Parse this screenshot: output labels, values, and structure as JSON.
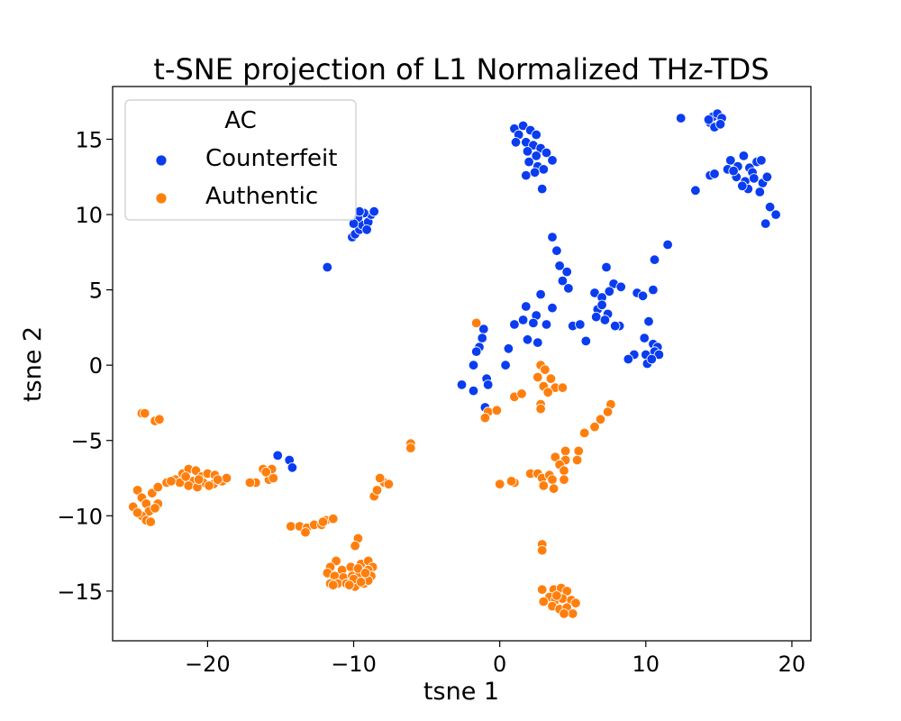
{
  "chart_data": {
    "type": "scatter",
    "title": "t-SNE projection of L1 Normalized THz-TDS",
    "xlabel": "tsne 1",
    "ylabel": "tsne 2",
    "xlim": [
      -26.5,
      21.3
    ],
    "ylim": [
      -18.3,
      18.5
    ],
    "xticks": [
      -20,
      -10,
      0,
      10,
      20
    ],
    "xtick_labels": [
      "−20",
      "−10",
      "0",
      "10",
      "20"
    ],
    "yticks": [
      -15,
      -10,
      -5,
      0,
      5,
      10,
      15
    ],
    "ytick_labels": [
      "−15",
      "−10",
      "−5",
      "0",
      "5",
      "10",
      "15"
    ],
    "grid": false,
    "legend": {
      "title": "AC",
      "placement": "top-left"
    },
    "series": [
      {
        "name": "Counterfeit",
        "color": "#0a3cf0",
        "points": [
          [
            -11.8,
            6.5
          ],
          [
            -10.1,
            8.5
          ],
          [
            -9.9,
            8.7
          ],
          [
            -9.6,
            9.0
          ],
          [
            -9.4,
            9.3
          ],
          [
            -9.0,
            9.5
          ],
          [
            -8.8,
            10.0
          ],
          [
            -9.3,
            10.1
          ],
          [
            -9.7,
            9.8
          ],
          [
            -10.0,
            9.4
          ],
          [
            -9.6,
            10.2
          ],
          [
            -9.1,
            9.0
          ],
          [
            -8.6,
            10.2
          ],
          [
            1.0,
            15.7
          ],
          [
            1.6,
            15.9
          ],
          [
            2.1,
            15.6
          ],
          [
            2.5,
            15.3
          ],
          [
            1.3,
            15.3
          ],
          [
            1.8,
            14.8
          ],
          [
            2.3,
            14.6
          ],
          [
            2.8,
            14.4
          ],
          [
            3.2,
            14.1
          ],
          [
            1.9,
            14.2
          ],
          [
            2.5,
            13.9
          ],
          [
            2.0,
            13.5
          ],
          [
            2.6,
            13.2
          ],
          [
            3.0,
            13.0
          ],
          [
            3.6,
            13.6
          ],
          [
            2.4,
            12.8
          ],
          [
            1.8,
            12.6
          ],
          [
            2.9,
            11.7
          ],
          [
            1.1,
            14.8
          ],
          [
            12.4,
            16.4
          ],
          [
            14.4,
            16.1
          ],
          [
            14.6,
            16.5
          ],
          [
            14.9,
            16.7
          ],
          [
            15.2,
            16.4
          ],
          [
            14.7,
            15.8
          ],
          [
            15.1,
            16.0
          ],
          [
            14.3,
            16.3
          ],
          [
            15.8,
            13.6
          ],
          [
            16.3,
            13.2
          ],
          [
            16.7,
            13.9
          ],
          [
            17.1,
            13.1
          ],
          [
            17.6,
            13.5
          ],
          [
            17.3,
            12.8
          ],
          [
            16.2,
            12.5
          ],
          [
            16.8,
            12.2
          ],
          [
            17.4,
            12.4
          ],
          [
            18.0,
            12.1
          ],
          [
            18.3,
            12.5
          ],
          [
            17.0,
            11.7
          ],
          [
            16.6,
            11.9
          ],
          [
            17.8,
            11.5
          ],
          [
            18.5,
            10.5
          ],
          [
            18.9,
            10.0
          ],
          [
            18.2,
            9.4
          ],
          [
            15.6,
            13.0
          ],
          [
            16.0,
            12.9
          ],
          [
            14.4,
            12.6
          ],
          [
            14.7,
            12.7
          ],
          [
            13.4,
            11.6
          ],
          [
            17.9,
            13.6
          ],
          [
            3.6,
            8.5
          ],
          [
            3.9,
            7.6
          ],
          [
            11.5,
            8.0
          ],
          [
            10.6,
            7.0
          ],
          [
            4.1,
            6.6
          ],
          [
            4.6,
            6.2
          ],
          [
            7.3,
            6.5
          ],
          [
            4.3,
            5.6
          ],
          [
            4.7,
            5.1
          ],
          [
            7.8,
            5.4
          ],
          [
            8.3,
            5.2
          ],
          [
            7.5,
            4.9
          ],
          [
            6.5,
            4.8
          ],
          [
            7.0,
            4.5
          ],
          [
            9.4,
            4.8
          ],
          [
            9.8,
            4.6
          ],
          [
            10.5,
            5.0
          ],
          [
            2.8,
            4.7
          ],
          [
            3.6,
            3.8
          ],
          [
            6.7,
            3.7
          ],
          [
            7.0,
            4.0
          ],
          [
            7.4,
            3.4
          ],
          [
            6.6,
            3.2
          ],
          [
            1.8,
            3.9
          ],
          [
            2.5,
            3.3
          ],
          [
            7.2,
            3.0
          ],
          [
            8.2,
            2.6
          ],
          [
            1.6,
            3.0
          ],
          [
            2.3,
            2.8
          ],
          [
            3.2,
            2.7
          ],
          [
            5.0,
            2.6
          ],
          [
            5.5,
            2.7
          ],
          [
            7.9,
            2.6
          ],
          [
            10.2,
            2.9
          ],
          [
            1.0,
            2.7
          ],
          [
            -1.1,
            2.4
          ],
          [
            -1.2,
            1.8
          ],
          [
            1.9,
            1.7
          ],
          [
            2.6,
            1.5
          ],
          [
            5.9,
            1.6
          ],
          [
            9.9,
            1.8
          ],
          [
            10.5,
            1.4
          ],
          [
            10.8,
            1.2
          ],
          [
            -1.4,
            1.2
          ],
          [
            0.6,
            1.1
          ],
          [
            -1.6,
            0.9
          ],
          [
            9.2,
            0.7
          ],
          [
            10.0,
            0.7
          ],
          [
            10.6,
            0.9
          ],
          [
            10.9,
            0.7
          ],
          [
            8.8,
            0.4
          ],
          [
            -1.8,
            0.0
          ],
          [
            0.4,
            0.0
          ],
          [
            10.1,
            0.1
          ],
          [
            10.4,
            0.4
          ],
          [
            -0.9,
            -0.9
          ],
          [
            -2.6,
            -1.3
          ],
          [
            -0.8,
            -1.3
          ],
          [
            -1.8,
            -1.7
          ],
          [
            -1.0,
            -2.8
          ],
          [
            -15.2,
            -6.0
          ],
          [
            -14.4,
            -6.3
          ],
          [
            -14.2,
            -6.8
          ]
        ]
      },
      {
        "name": "Authentic",
        "color": "#ff7f0e",
        "points": [
          [
            -1.6,
            2.8
          ],
          [
            2.8,
            0.0
          ],
          [
            3.1,
            -0.3
          ],
          [
            3.5,
            -0.9
          ],
          [
            3.8,
            -1.5
          ],
          [
            4.3,
            -1.5
          ],
          [
            2.6,
            -0.8
          ],
          [
            3.0,
            -1.4
          ],
          [
            3.3,
            -1.8
          ],
          [
            1.0,
            -2.1
          ],
          [
            1.5,
            -1.9
          ],
          [
            2.8,
            -2.6
          ],
          [
            2.8,
            -2.9
          ],
          [
            -0.8,
            -3.1
          ],
          [
            -0.2,
            -3.0
          ],
          [
            -1.0,
            -3.5
          ],
          [
            7.6,
            -2.6
          ],
          [
            7.4,
            -3.1
          ],
          [
            6.9,
            -3.6
          ],
          [
            6.5,
            -4.1
          ],
          [
            5.8,
            -4.5
          ],
          [
            4.5,
            -5.7
          ],
          [
            5.4,
            -5.7
          ],
          [
            4.5,
            -6.3
          ],
          [
            5.3,
            -6.3
          ],
          [
            3.8,
            -6.1
          ],
          [
            4.1,
            -6.6
          ],
          [
            4.4,
            -7.0
          ],
          [
            2.1,
            -7.2
          ],
          [
            2.6,
            -7.2
          ],
          [
            2.9,
            -7.5
          ],
          [
            3.4,
            -7.3
          ],
          [
            3.6,
            -7.6
          ],
          [
            3.0,
            -8.0
          ],
          [
            3.7,
            -8.2
          ],
          [
            1.0,
            -7.8
          ],
          [
            0.8,
            -7.7
          ],
          [
            0.0,
            -7.9
          ],
          [
            4.4,
            -7.6
          ],
          [
            2.9,
            -11.9
          ],
          [
            2.9,
            -12.3
          ],
          [
            3.7,
            -14.9
          ],
          [
            4.2,
            -14.8
          ],
          [
            4.6,
            -15.0
          ],
          [
            3.4,
            -15.4
          ],
          [
            3.8,
            -15.6
          ],
          [
            4.3,
            -15.5
          ],
          [
            4.9,
            -15.6
          ],
          [
            5.2,
            -15.8
          ],
          [
            3.0,
            -15.7
          ],
          [
            3.6,
            -16.0
          ],
          [
            4.1,
            -16.2
          ],
          [
            4.6,
            -16.1
          ],
          [
            5.0,
            -16.5
          ],
          [
            4.4,
            -16.5
          ],
          [
            2.9,
            -14.9
          ],
          [
            3.9,
            -15.3
          ],
          [
            -24.5,
            -3.2
          ],
          [
            -24.3,
            -3.2
          ],
          [
            -23.6,
            -3.7
          ],
          [
            -23.3,
            -3.6
          ],
          [
            -24.8,
            -8.3
          ],
          [
            -24.5,
            -8.8
          ],
          [
            -24.2,
            -9.2
          ],
          [
            -23.8,
            -8.5
          ],
          [
            -23.4,
            -9.2
          ],
          [
            -24.0,
            -9.7
          ],
          [
            -24.5,
            -10.0
          ],
          [
            -24.2,
            -10.3
          ],
          [
            -23.9,
            -10.4
          ],
          [
            -25.1,
            -9.4
          ],
          [
            -24.8,
            -9.8
          ],
          [
            -23.6,
            -9.5
          ],
          [
            -23.4,
            -8.1
          ],
          [
            -22.8,
            -7.8
          ],
          [
            -22.2,
            -7.6
          ],
          [
            -21.7,
            -7.2
          ],
          [
            -21.3,
            -6.9
          ],
          [
            -20.8,
            -7.0
          ],
          [
            -20.4,
            -7.4
          ],
          [
            -20.0,
            -7.2
          ],
          [
            -19.5,
            -7.3
          ],
          [
            -21.0,
            -7.7
          ],
          [
            -20.3,
            -7.8
          ],
          [
            -19.6,
            -7.9
          ],
          [
            -19.0,
            -7.7
          ],
          [
            -18.7,
            -7.5
          ],
          [
            -21.9,
            -7.8
          ],
          [
            -22.5,
            -7.7
          ],
          [
            -21.3,
            -8.0
          ],
          [
            -20.7,
            -8.1
          ],
          [
            -19.9,
            -8.0
          ],
          [
            -21.5,
            -7.4
          ],
          [
            -20.6,
            -7.6
          ],
          [
            -19.3,
            -7.6
          ],
          [
            -16.7,
            -7.8
          ],
          [
            -17.1,
            -7.8
          ],
          [
            -16.2,
            -6.9
          ],
          [
            -15.8,
            -7.6
          ],
          [
            -15.5,
            -7.5
          ],
          [
            -15.6,
            -6.9
          ],
          [
            -16.0,
            -7.1
          ],
          [
            -14.3,
            -10.7
          ],
          [
            -13.7,
            -10.7
          ],
          [
            -13.2,
            -10.8
          ],
          [
            -13.3,
            -11.1
          ],
          [
            -12.7,
            -10.6
          ],
          [
            -12.2,
            -10.6
          ],
          [
            -11.9,
            -10.3
          ],
          [
            -11.4,
            -10.2
          ],
          [
            -12.1,
            -10.4
          ],
          [
            -8.6,
            -8.7
          ],
          [
            -8.4,
            -8.3
          ],
          [
            -7.9,
            -7.8
          ],
          [
            -8.2,
            -7.5
          ],
          [
            -7.6,
            -7.9
          ],
          [
            -6.1,
            -5.2
          ],
          [
            -6.1,
            -5.5
          ],
          [
            -9.7,
            -11.5
          ],
          [
            -9.9,
            -12.0
          ],
          [
            -11.2,
            -13.0
          ],
          [
            -11.6,
            -13.4
          ],
          [
            -10.8,
            -13.6
          ],
          [
            -10.2,
            -13.4
          ],
          [
            -9.5,
            -13.2
          ],
          [
            -9.0,
            -13.0
          ],
          [
            -8.7,
            -13.4
          ],
          [
            -11.8,
            -13.8
          ],
          [
            -11.3,
            -14.0
          ],
          [
            -10.7,
            -14.1
          ],
          [
            -10.1,
            -14.0
          ],
          [
            -9.6,
            -13.9
          ],
          [
            -9.0,
            -13.6
          ],
          [
            -8.8,
            -14.0
          ],
          [
            -11.6,
            -14.5
          ],
          [
            -11.1,
            -14.5
          ],
          [
            -10.5,
            -14.5
          ],
          [
            -9.9,
            -14.7
          ],
          [
            -9.3,
            -14.5
          ],
          [
            -9.0,
            -14.3
          ],
          [
            -10.0,
            -14.2
          ],
          [
            -9.5,
            -14.4
          ],
          [
            -11.4,
            -14.6
          ],
          [
            -10.3,
            -14.6
          ],
          [
            -9.7,
            -13.5
          ],
          [
            -9.2,
            -13.8
          ]
        ]
      }
    ]
  }
}
